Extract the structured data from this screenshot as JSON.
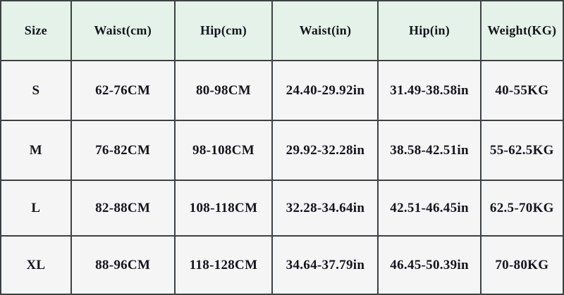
{
  "chart_data": {
    "type": "table",
    "title": "",
    "columns": [
      "Size",
      "Waist(cm)",
      "Hip(cm)",
      "Waist(in)",
      "Hip(in)",
      "Weight(KG)"
    ],
    "rows": [
      [
        "S",
        "62-76CM",
        "80-98CM",
        "24.40-29.92in",
        "31.49-38.58in",
        "40-55KG"
      ],
      [
        "M",
        "76-82CM",
        "98-108CM",
        "29.92-32.28in",
        "38.58-42.51in",
        "55-62.5KG"
      ],
      [
        "L",
        "82-88CM",
        "108-118CM",
        "32.28-34.64in",
        "42.51-46.45in",
        "62.5-70KG"
      ],
      [
        "XL",
        "88-96CM",
        "118-128CM",
        "34.64-37.79in",
        "46.45-50.39in",
        "70-80KG"
      ]
    ]
  },
  "colors": {
    "header_bg": "#e4f2e9",
    "cell_bg": "#f5f5f6",
    "border": "#3d4144",
    "text": "#14141d"
  }
}
